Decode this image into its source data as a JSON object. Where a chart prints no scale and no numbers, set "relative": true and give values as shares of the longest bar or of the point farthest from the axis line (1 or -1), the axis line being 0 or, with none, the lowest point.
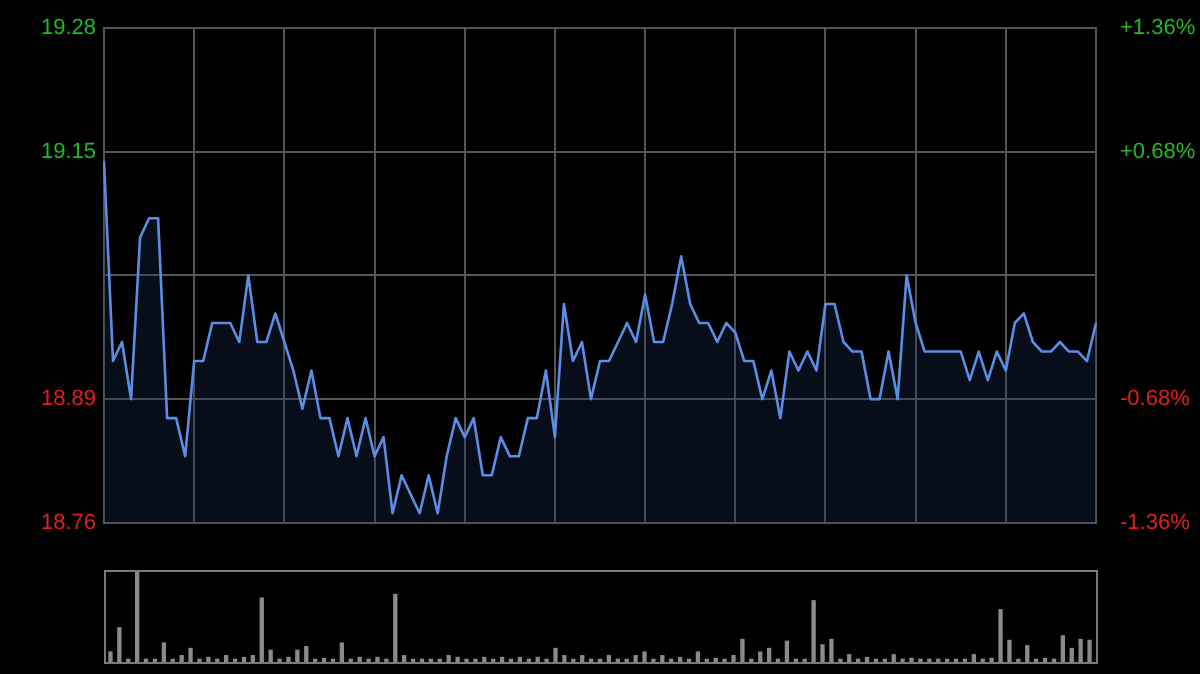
{
  "chart_data": [
    {
      "type": "area",
      "color": "#5a8ee6",
      "grid": true,
      "tick_labels": "y",
      "categories": [
        null,
        null,
        null,
        null,
        null,
        null,
        null,
        null,
        null,
        null,
        null,
        null,
        null,
        null,
        null,
        null,
        null,
        null,
        null,
        null,
        null,
        null,
        null,
        null,
        null,
        null,
        null,
        null,
        null,
        null,
        null,
        null,
        null,
        null,
        null,
        null,
        null,
        null,
        null,
        null,
        null,
        null,
        null,
        null,
        null,
        null,
        null,
        null,
        null,
        null,
        null,
        null,
        null,
        null,
        null,
        null,
        null,
        null,
        null,
        null,
        null,
        null,
        null,
        null,
        null,
        null,
        null,
        null,
        null,
        null,
        null,
        null,
        null,
        null,
        null,
        null,
        null,
        null,
        null,
        null,
        null,
        null,
        null,
        null,
        null,
        null,
        null,
        null,
        null,
        null,
        null,
        null,
        null,
        null,
        null,
        null,
        null,
        null,
        null,
        null,
        null,
        null,
        null,
        null,
        null,
        null,
        null,
        null,
        null,
        null,
        null
      ],
      "ylim": [
        18.76,
        19.28
      ],
      "yticks": [
        18.76,
        18.89,
        {
          "value": 19.02,
          "label": null
        },
        19.15,
        19.28
      ],
      "y2lim": [
        -1.36,
        1.36
      ],
      "y2ticks": [
        {
          "value": -1.36,
          "label": "-1.36%"
        },
        {
          "value": -0.68,
          "label": "-0.68%"
        },
        {
          "value": 0,
          "label": null
        },
        {
          "value": 0.68,
          "label": "+0.68%"
        },
        {
          "value": 1.36,
          "label": "+1.36%"
        }
      ],
      "values": [
        19.14,
        18.93,
        18.95,
        18.89,
        19.06,
        19.08,
        19.08,
        18.87,
        18.87,
        18.83,
        18.93,
        18.93,
        18.97,
        18.97,
        18.97,
        18.95,
        19.02,
        18.95,
        18.95,
        18.98,
        18.95,
        18.92,
        18.88,
        18.92,
        18.87,
        18.87,
        18.83,
        18.87,
        18.83,
        18.87,
        18.83,
        18.85,
        18.77,
        18.81,
        18.79,
        18.77,
        18.81,
        18.77,
        18.83,
        18.87,
        18.85,
        18.87,
        18.81,
        18.81,
        18.85,
        18.83,
        18.83,
        18.87,
        18.87,
        18.92,
        18.85,
        18.99,
        18.93,
        18.95,
        18.89,
        18.93,
        18.93,
        18.95,
        18.97,
        18.95,
        19.0,
        18.95,
        18.95,
        18.99,
        19.04,
        18.99,
        18.97,
        18.97,
        18.95,
        18.97,
        18.96,
        18.93,
        18.93,
        18.89,
        18.92,
        18.87,
        18.94,
        18.92,
        18.94,
        18.92,
        18.99,
        18.99,
        18.95,
        18.94,
        18.94,
        18.89,
        18.89,
        18.94,
        18.89,
        19.02,
        18.97,
        18.94,
        18.94,
        18.94,
        18.94,
        18.94,
        18.91,
        18.94,
        18.91,
        18.94,
        18.92,
        18.97,
        18.98,
        18.95,
        18.94,
        18.94,
        18.95,
        18.94,
        18.94,
        18.93,
        18.97
      ]
    },
    {
      "type": "bar",
      "color": "#8a8a8a",
      "relative": true,
      "tick_labels": false,
      "categories": [
        null,
        null,
        null,
        null,
        null,
        null,
        null,
        null,
        null,
        null,
        null,
        null,
        null,
        null,
        null,
        null,
        null,
        null,
        null,
        null,
        null,
        null,
        null,
        null,
        null,
        null,
        null,
        null,
        null,
        null,
        null,
        null,
        null,
        null,
        null,
        null,
        null,
        null,
        null,
        null,
        null,
        null,
        null,
        null,
        null,
        null,
        null,
        null,
        null,
        null,
        null,
        null,
        null,
        null,
        null,
        null,
        null,
        null,
        null,
        null,
        null,
        null,
        null,
        null,
        null,
        null,
        null,
        null,
        null,
        null,
        null,
        null,
        null,
        null,
        null,
        null,
        null,
        null,
        null,
        null,
        null,
        null,
        null,
        null,
        null,
        null,
        null,
        null,
        null,
        null,
        null,
        null,
        null,
        null,
        null,
        null,
        null,
        null,
        null,
        null,
        null,
        null,
        null,
        null,
        null,
        null,
        null,
        null,
        null,
        null,
        null
      ],
      "values": [
        0.11,
        0.38,
        0.03,
        1,
        0.03,
        0.03,
        0.21,
        0.03,
        0.07,
        0.15,
        0.03,
        0.05,
        0.03,
        0.07,
        0.03,
        0.05,
        0.07,
        0.71,
        0.13,
        0.03,
        0.05,
        0.13,
        0.17,
        0.03,
        0.04,
        0.03,
        0.21,
        0.03,
        0.05,
        0.03,
        0.05,
        0.03,
        0.75,
        0.07,
        0.03,
        0.03,
        0.03,
        0.03,
        0.07,
        0.05,
        0.03,
        0.03,
        0.05,
        0.03,
        0.05,
        0.03,
        0.05,
        0.03,
        0.05,
        0.03,
        0.15,
        0.07,
        0.03,
        0.07,
        0.03,
        0.03,
        0.07,
        0.03,
        0.03,
        0.07,
        0.11,
        0.03,
        0.07,
        0.03,
        0.05,
        0.03,
        0.11,
        0.03,
        0.04,
        0.03,
        0.07,
        0.25,
        0.03,
        0.11,
        0.15,
        0.03,
        0.23,
        0.03,
        0.03,
        0.68,
        0.19,
        0.25,
        0.03,
        0.08,
        0.03,
        0.05,
        0.03,
        0.03,
        0.08,
        0.03,
        0.04,
        0.03,
        0.03,
        0.03,
        0.03,
        0.03,
        0.03,
        0.08,
        0.03,
        0.04,
        0.58,
        0.24,
        0.03,
        0.18,
        0.03,
        0.04,
        0.03,
        0.29,
        0.15,
        0.25,
        0.24
      ]
    }
  ]
}
